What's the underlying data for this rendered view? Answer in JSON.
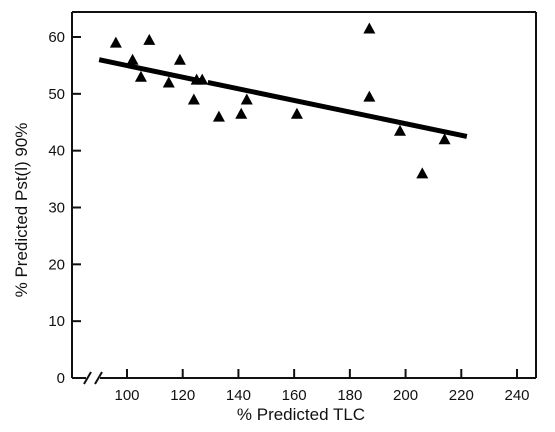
{
  "chart_data": {
    "type": "scatter",
    "title": "",
    "xlabel": "% Predicted TLC",
    "ylabel": "% Predicted Pst(l) 90%",
    "xlim": [
      80,
      240
    ],
    "ylim": [
      0,
      65
    ],
    "x_axis_break": true,
    "xticks": [
      100,
      120,
      140,
      160,
      180,
      200,
      220,
      240
    ],
    "yticks": [
      0,
      10,
      20,
      30,
      40,
      50,
      60
    ],
    "grid": false,
    "marker": "triangle",
    "points": [
      {
        "x": 96,
        "y": 59
      },
      {
        "x": 102,
        "y": 56
      },
      {
        "x": 105,
        "y": 53
      },
      {
        "x": 108,
        "y": 59.5
      },
      {
        "x": 115,
        "y": 52
      },
      {
        "x": 119,
        "y": 56
      },
      {
        "x": 124,
        "y": 49
      },
      {
        "x": 125,
        "y": 52.5
      },
      {
        "x": 127,
        "y": 52.5
      },
      {
        "x": 133,
        "y": 46
      },
      {
        "x": 141,
        "y": 46.5
      },
      {
        "x": 143,
        "y": 49
      },
      {
        "x": 161,
        "y": 46.5
      },
      {
        "x": 187,
        "y": 61.5
      },
      {
        "x": 187,
        "y": 49.5
      },
      {
        "x": 198,
        "y": 43.5
      },
      {
        "x": 206,
        "y": 36
      },
      {
        "x": 214,
        "y": 42
      }
    ],
    "fit_line": {
      "x": [
        90,
        222
      ],
      "y": [
        56,
        42.5
      ]
    }
  }
}
